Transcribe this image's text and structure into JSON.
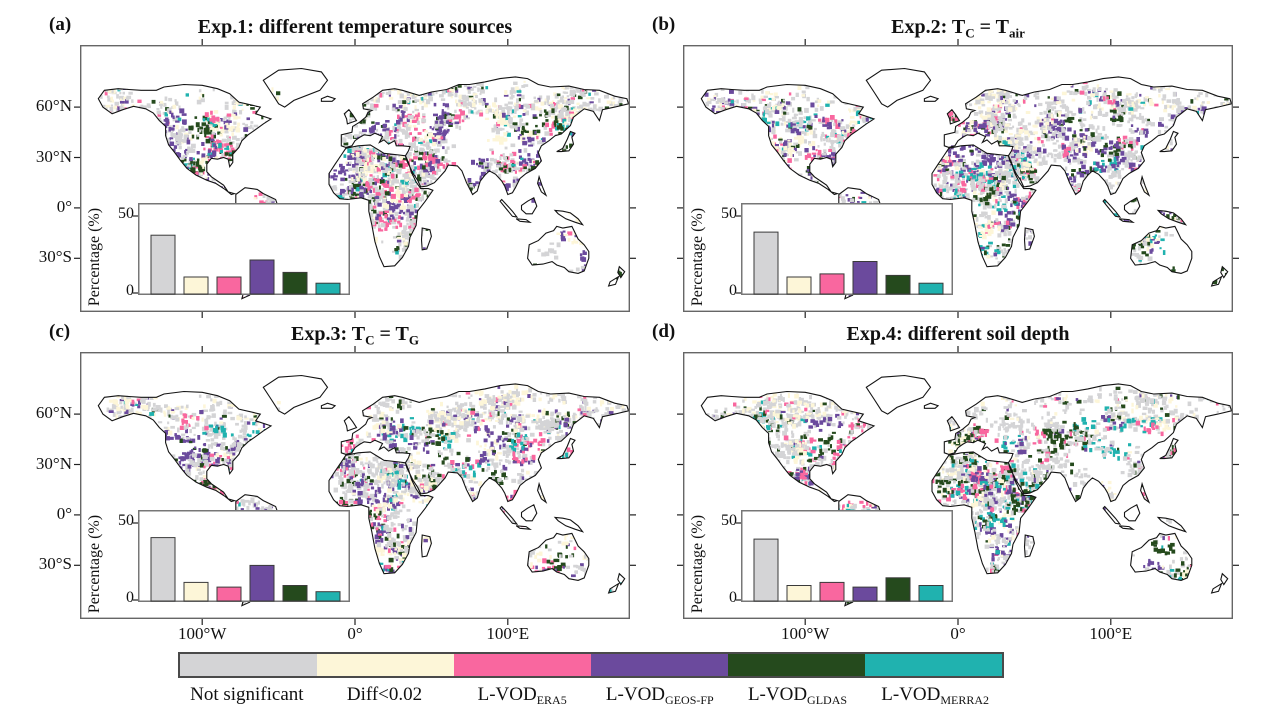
{
  "panels": [
    {
      "id": "a",
      "tag": "(a)",
      "title_parts": [
        {
          "t": "Exp.1: different temperature sources"
        }
      ]
    },
    {
      "id": "b",
      "tag": "(b)",
      "title_parts": [
        {
          "t": "Exp.2: T"
        },
        {
          "t": "C",
          "sub": true
        },
        {
          "t": " = T"
        },
        {
          "t": "air",
          "sub": true
        }
      ]
    },
    {
      "id": "c",
      "tag": "(c)",
      "title_parts": [
        {
          "t": "Exp.3: T"
        },
        {
          "t": "C",
          "sub": true
        },
        {
          "t": " = T"
        },
        {
          "t": "G",
          "sub": true
        }
      ]
    },
    {
      "id": "d",
      "tag": "(d)",
      "title_parts": [
        {
          "t": "Exp.4: different soil depth"
        }
      ]
    }
  ],
  "map_axes": {
    "xtick_labels": [
      "100°W",
      "0°",
      "100°E"
    ],
    "xtick_lons": [
      -100,
      0,
      100
    ],
    "ytick_labels": [
      "60°N",
      "30°N",
      "0°",
      "30°S"
    ],
    "ytick_lats": [
      60,
      30,
      0,
      -30
    ]
  },
  "inset": {
    "ylabel": "Percentage (%)",
    "ytick_labels": [
      "50",
      "0"
    ],
    "ymax": 58.2
  },
  "legend": {
    "items": [
      {
        "label": "Not significant",
        "sub": "",
        "color": "#d4d4d6"
      },
      {
        "label": "Diff<0.02",
        "sub": "",
        "color": "#fdf6d8"
      },
      {
        "label": "L-VOD",
        "sub": "ERA5",
        "color": "#f9679f"
      },
      {
        "label": "L-VOD",
        "sub": "GEOS-FP",
        "color": "#6b4a9d"
      },
      {
        "label": "L-VOD",
        "sub": "GLDAS",
        "color": "#254a1d"
      },
      {
        "label": "L-VOD",
        "sub": "MERRA2",
        "color": "#20b2af"
      }
    ]
  },
  "chart_data": [
    {
      "type": "bar",
      "title": "Exp.1: different temperature sources",
      "categories": [
        "Not significant",
        "Diff<0.02",
        "L-VOD_ERA5",
        "L-VOD_GEOS-FP",
        "L-VOD_GLDAS",
        "L-VOD_MERRA2"
      ],
      "values": [
        38,
        11,
        11,
        22,
        14,
        7
      ],
      "xlabel": "",
      "ylabel": "Percentage (%)",
      "ylim": [
        0,
        58
      ],
      "yticks": [
        0,
        50
      ],
      "legend_position": "none"
    },
    {
      "type": "bar",
      "title": "Exp.2: T_C = T_air",
      "categories": [
        "Not significant",
        "Diff<0.02",
        "L-VOD_ERA5",
        "L-VOD_GEOS-FP",
        "L-VOD_GLDAS",
        "L-VOD_MERRA2"
      ],
      "values": [
        40,
        11,
        13,
        21,
        12,
        7
      ],
      "xlabel": "",
      "ylabel": "Percentage (%)",
      "ylim": [
        0,
        58
      ],
      "yticks": [
        0,
        50
      ],
      "legend_position": "none"
    },
    {
      "type": "bar",
      "title": "Exp.3: T_C = T_G",
      "categories": [
        "Not significant",
        "Diff<0.02",
        "L-VOD_ERA5",
        "L-VOD_GEOS-FP",
        "L-VOD_GLDAS",
        "L-VOD_MERRA2"
      ],
      "values": [
        41,
        12,
        9,
        23,
        10,
        6
      ],
      "xlabel": "",
      "ylabel": "Percentage (%)",
      "ylim": [
        0,
        58
      ],
      "yticks": [
        0,
        50
      ],
      "legend_position": "none"
    },
    {
      "type": "bar",
      "title": "Exp.4: different soil depth",
      "categories": [
        "Not significant",
        "Diff<0.02",
        "L-VOD_ERA5",
        "L-VOD_GEOS-FP",
        "L-VOD_GLDAS",
        "L-VOD_MERRA2"
      ],
      "values": [
        40,
        10,
        12,
        9,
        15,
        10
      ],
      "xlabel": "",
      "ylabel": "Percentage (%)",
      "ylim": [
        0,
        58
      ],
      "yticks": [
        0,
        50
      ],
      "legend_position": "none"
    }
  ]
}
